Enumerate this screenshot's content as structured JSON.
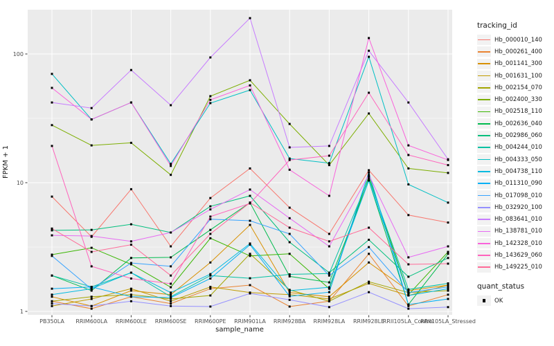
{
  "legend": {
    "tracking_title": "tracking_id",
    "quant_title": "quant_status",
    "quant_ok_label": "OK"
  },
  "style": {
    "background": "#ffffff",
    "panel_bg": "#ebebeb",
    "grid_color": "#ffffff",
    "axis_text_color": "#4d4d4d",
    "title_text_color": "#1a1a1a",
    "tick_color": "#333333",
    "marker_color": "#000000",
    "legend_key_bg": "#f2f2f2"
  },
  "chart_data": {
    "type": "line",
    "title": "",
    "xlabel": "sample_name",
    "ylabel": "FPKM + 1",
    "yscale": "log10",
    "ylim": [
      0.93,
      225
    ],
    "grid": "on",
    "legend_position": "right",
    "x_categories": [
      "PB350LA",
      "RRIM600LA",
      "RRIM600LE",
      "RRIM600SE",
      "RRIM600PE",
      "RRIM901LA",
      "RRIM928BA",
      "RRIM928LA",
      "RRIM928LE",
      "RRII105LA_Control",
      "RRII105LA_Stressed"
    ],
    "y_ticks": [
      1,
      10,
      100
    ],
    "y_tick_labels": [
      "1",
      "10",
      "100"
    ],
    "y_minor_gridlines": [
      3.1623,
      31.6228
    ],
    "series": [
      {
        "name": "Hb_000010_140",
        "color": "#F8766D",
        "values": [
          7.8,
          3.8,
          8.9,
          3.2,
          7.6,
          12.9,
          6.4,
          4.0,
          12.5,
          5.6,
          4.9
        ]
      },
      {
        "name": "Hb_000261_400",
        "color": "#EA8331",
        "values": [
          1.2,
          1.05,
          1.3,
          1.15,
          1.5,
          1.6,
          1.09,
          1.2,
          2.8,
          1.1,
          1.35
        ]
      },
      {
        "name": "Hb_001141_300",
        "color": "#D89000",
        "values": [
          1.3,
          1.1,
          1.45,
          1.35,
          2.4,
          4.7,
          1.4,
          1.3,
          2.4,
          1.45,
          1.6
        ]
      },
      {
        "name": "Hb_001631_100",
        "color": "#C09B00",
        "values": [
          1.1,
          1.25,
          1.5,
          1.2,
          1.55,
          1.4,
          1.35,
          1.25,
          1.65,
          1.33,
          1.6
        ]
      },
      {
        "name": "Hb_002154_070",
        "color": "#A3A500",
        "values": [
          1.2,
          1.3,
          1.35,
          1.25,
          1.33,
          2.8,
          1.47,
          1.2,
          1.7,
          1.4,
          1.45
        ]
      },
      {
        "name": "Hb_002400_330",
        "color": "#7CAE00",
        "values": [
          28,
          19.5,
          20.4,
          11.5,
          47,
          62.5,
          28.6,
          13.7,
          34.5,
          12.9,
          11.9
        ]
      },
      {
        "name": "Hb_002518_110",
        "color": "#39B600",
        "values": [
          2.76,
          3.12,
          2.32,
          1.54,
          3.7,
          2.7,
          2.8,
          1.5,
          11.2,
          1.35,
          2.9
        ]
      },
      {
        "name": "Hb_002636_040",
        "color": "#00BB4E",
        "values": [
          1.9,
          1.45,
          2.6,
          2.63,
          4.3,
          7.0,
          1.87,
          1.68,
          10.4,
          1.13,
          2.8
        ]
      },
      {
        "name": "Hb_002986_060",
        "color": "#00BF7D",
        "values": [
          4.26,
          4.3,
          4.75,
          4.1,
          6.55,
          7.9,
          3.45,
          2.0,
          3.6,
          1.86,
          2.6
        ]
      },
      {
        "name": "Hb_004244_010",
        "color": "#00C1A3",
        "values": [
          1.9,
          1.55,
          2.0,
          1.3,
          1.9,
          1.81,
          1.94,
          1.97,
          10.8,
          1.48,
          1.65
        ]
      },
      {
        "name": "Hb_004333_050",
        "color": "#00BFC4",
        "values": [
          70,
          31,
          42,
          14,
          41.5,
          52.5,
          15.4,
          14.2,
          95,
          9.7,
          7.0
        ]
      },
      {
        "name": "Hb_004738_110",
        "color": "#00BAE0",
        "values": [
          1.35,
          1.5,
          2.0,
          1.4,
          1.95,
          3.37,
          1.45,
          1.54,
          10.4,
          1.33,
          1.5
        ]
      },
      {
        "name": "Hb_011310_090",
        "color": "#00B0F6",
        "values": [
          1.5,
          1.55,
          1.3,
          1.28,
          1.8,
          3.3,
          1.31,
          1.41,
          12.0,
          1.13,
          1.25
        ]
      },
      {
        "name": "Hb_017098_010",
        "color": "#35A2FF",
        "values": [
          2.7,
          1.49,
          2.38,
          2.24,
          5.2,
          5.06,
          4.0,
          1.9,
          3.16,
          1.4,
          1.55
        ]
      },
      {
        "name": "Hb_032920_100",
        "color": "#9590FF",
        "values": [
          1.15,
          1.1,
          1.2,
          1.1,
          1.09,
          1.38,
          1.23,
          1.08,
          1.41,
          1.05,
          1.08
        ]
      },
      {
        "name": "Hb_083641_010",
        "color": "#C77CFF",
        "values": [
          42,
          38,
          75,
          40,
          94,
          190,
          18.8,
          19.3,
          106,
          42,
          15.2
        ]
      },
      {
        "name": "Hb_138781_010",
        "color": "#E76BF3",
        "values": [
          3.9,
          3.85,
          3.5,
          4.1,
          6.2,
          8.85,
          5.3,
          3.2,
          11.5,
          2.63,
          3.2
        ]
      },
      {
        "name": "Hb_142328_010",
        "color": "#FA62DB",
        "values": [
          54.5,
          31,
          42,
          13.5,
          44,
          57,
          12.6,
          7.9,
          133,
          19.5,
          15.0
        ]
      },
      {
        "name": "Hb_143629_060",
        "color": "#FF62BC",
        "values": [
          19.3,
          2.24,
          1.8,
          1.64,
          5.45,
          6.9,
          15.0,
          16.2,
          50,
          16.4,
          13.7
        ]
      },
      {
        "name": "Hb_149225_010",
        "color": "#FF6A98",
        "values": [
          4.4,
          2.9,
          3.3,
          1.9,
          4.0,
          7.0,
          4.47,
          3.5,
          4.47,
          2.32,
          2.35
        ]
      }
    ]
  }
}
